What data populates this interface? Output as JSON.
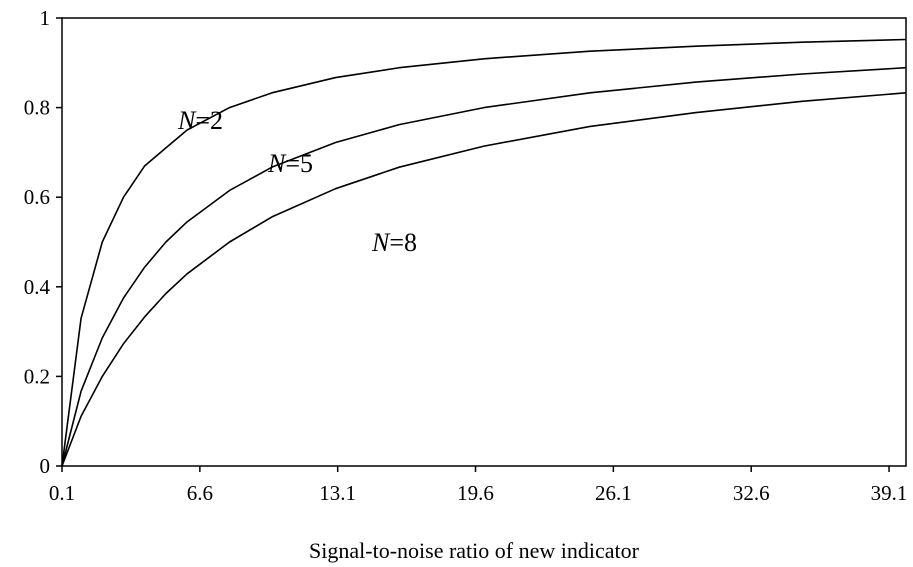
{
  "chart_data": {
    "type": "line",
    "title": "",
    "xlabel": "Signal-to-noise ratio of new indicator",
    "ylabel": "",
    "xlim": [
      0.1,
      39.9
    ],
    "ylim": [
      0,
      1
    ],
    "x_ticks": [
      "0.1",
      "6.6",
      "13.1",
      "19.6",
      "26.1",
      "32.6",
      "39.1"
    ],
    "y_ticks": [
      "0",
      "0.2",
      "0.4",
      "0.6",
      "0.8",
      "1"
    ],
    "grid": false,
    "legend": "none",
    "series": [
      {
        "name": "N=2",
        "label_italic": "N",
        "label_rest": "=2",
        "x": [
          0.1,
          1,
          2,
          3,
          4,
          5,
          6,
          8,
          10,
          13,
          16,
          20,
          25,
          30,
          35,
          39.9
        ],
        "y": [
          0.0,
          0.33,
          0.5,
          0.6,
          0.67,
          0.71,
          0.75,
          0.8,
          0.833,
          0.867,
          0.889,
          0.909,
          0.926,
          0.937,
          0.946,
          0.952
        ]
      },
      {
        "name": "N=5",
        "label_italic": "N",
        "label_rest": "=5",
        "x": [
          0.1,
          1,
          2,
          3,
          4,
          5,
          6,
          8,
          10,
          13,
          16,
          20,
          25,
          30,
          35,
          39.9
        ],
        "y": [
          0.0,
          0.167,
          0.286,
          0.375,
          0.444,
          0.5,
          0.545,
          0.615,
          0.667,
          0.722,
          0.762,
          0.8,
          0.833,
          0.857,
          0.875,
          0.889
        ]
      },
      {
        "name": "N=8",
        "label_italic": "N",
        "label_rest": "=8",
        "x": [
          0.1,
          1,
          2,
          3,
          4,
          5,
          6,
          8,
          10,
          13,
          16,
          20,
          25,
          30,
          35,
          39.9
        ],
        "y": [
          0.0,
          0.111,
          0.2,
          0.273,
          0.333,
          0.385,
          0.429,
          0.5,
          0.556,
          0.619,
          0.667,
          0.714,
          0.758,
          0.789,
          0.814,
          0.833
        ]
      }
    ]
  }
}
